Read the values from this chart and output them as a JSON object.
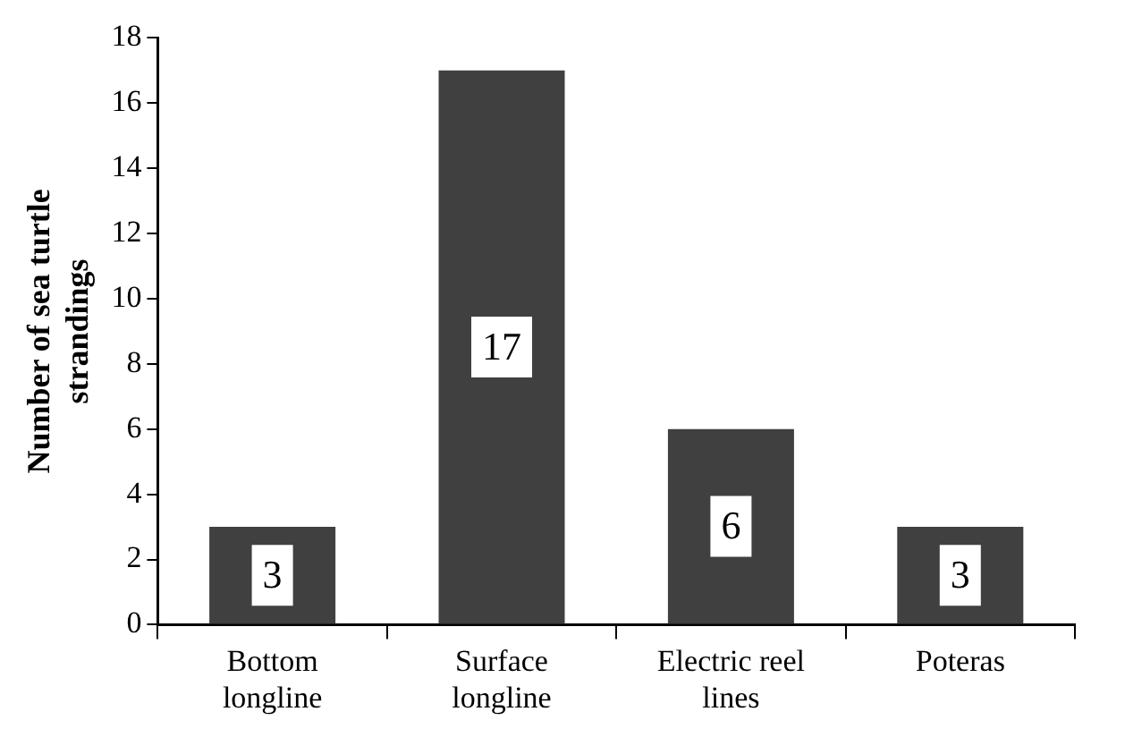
{
  "chart_data": {
    "type": "bar",
    "ylabel": "Number of sea turtle strandings",
    "categories": [
      "Bottom longline",
      "Surface longline",
      "Electric reel lines",
      "Poteras"
    ],
    "values": [
      3,
      17,
      6,
      3
    ],
    "color": "#404040",
    "ylim": [
      0,
      18
    ],
    "yticks": [
      0,
      2,
      4,
      6,
      8,
      10,
      12,
      14,
      16,
      18
    ],
    "grid": false,
    "legend": false,
    "data_labels": true
  }
}
